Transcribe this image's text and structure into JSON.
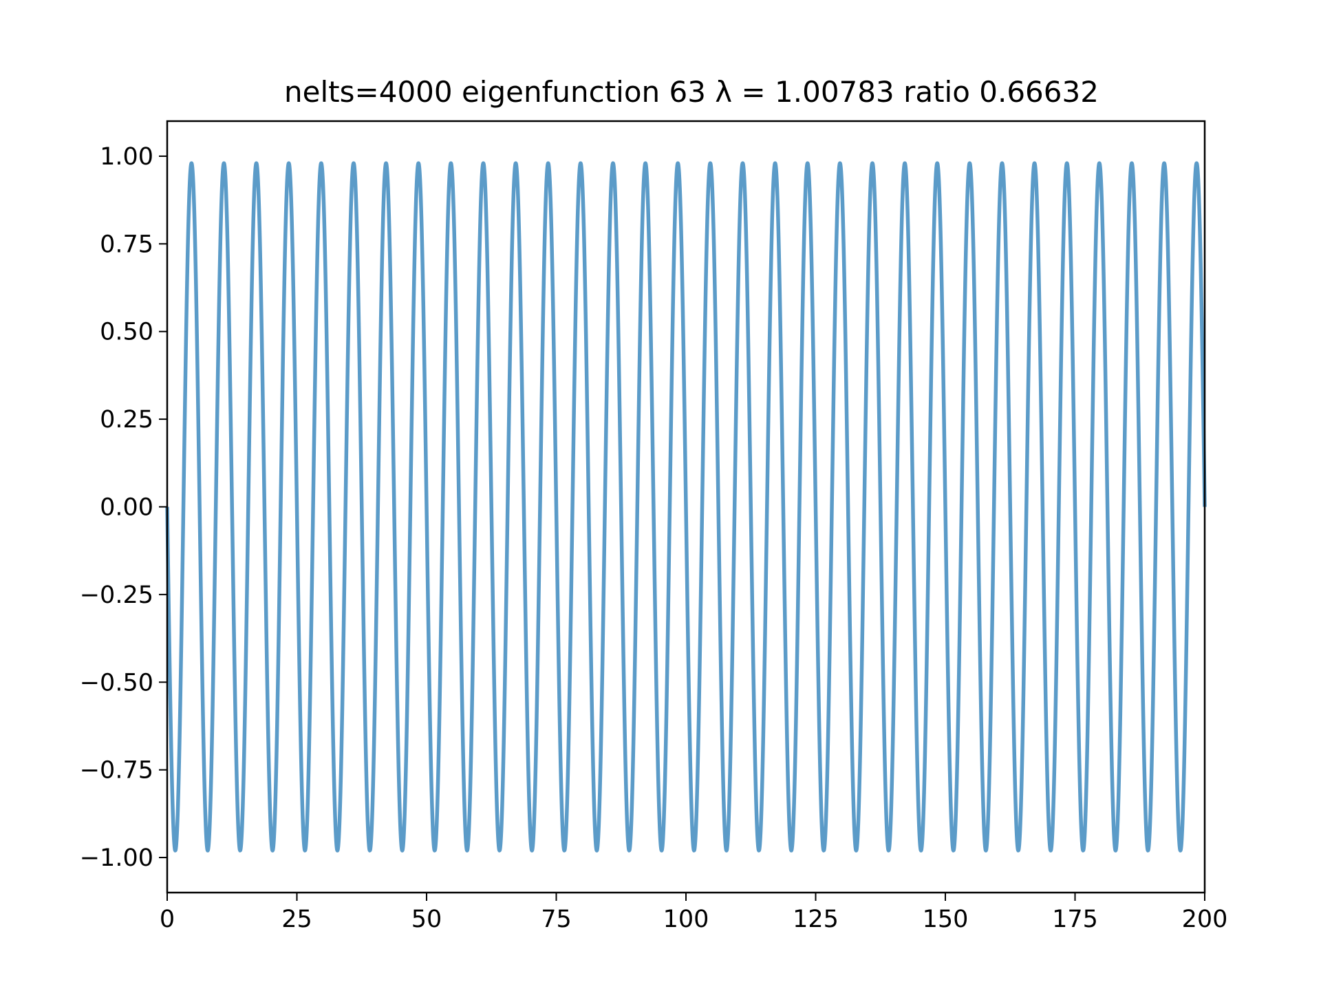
{
  "chart_data": {
    "type": "line",
    "title": "nelts=4000  eigenfunction 63  λ = 1.00783 ratio 0.66632",
    "xlabel": "",
    "ylabel": "",
    "xlim": [
      0,
      200
    ],
    "ylim": [
      -1.1,
      1.1
    ],
    "grid": false,
    "legend": "none",
    "x_ticks": [
      0,
      25,
      50,
      75,
      100,
      125,
      150,
      175,
      200
    ],
    "x_tick_labels": [
      "0",
      "25",
      "50",
      "75",
      "100",
      "125",
      "150",
      "175",
      "200"
    ],
    "y_ticks": [
      1.0,
      0.75,
      0.5,
      0.25,
      0.0,
      -0.25,
      -0.5,
      -0.75,
      -1.0
    ],
    "y_tick_labels": [
      "1.00",
      "0.75",
      "0.50",
      "0.25",
      "0.00",
      "−0.25",
      "−0.50",
      "−0.75",
      "−1.00"
    ],
    "series": [
      {
        "color": "#5b9bc8",
        "function": "sine",
        "amplitude": 0.98,
        "period": 6.23,
        "x_start": 0,
        "x_end": 200,
        "y_at_start": 0.0,
        "y_at_end": 0.0,
        "initial_direction": "down"
      }
    ]
  }
}
